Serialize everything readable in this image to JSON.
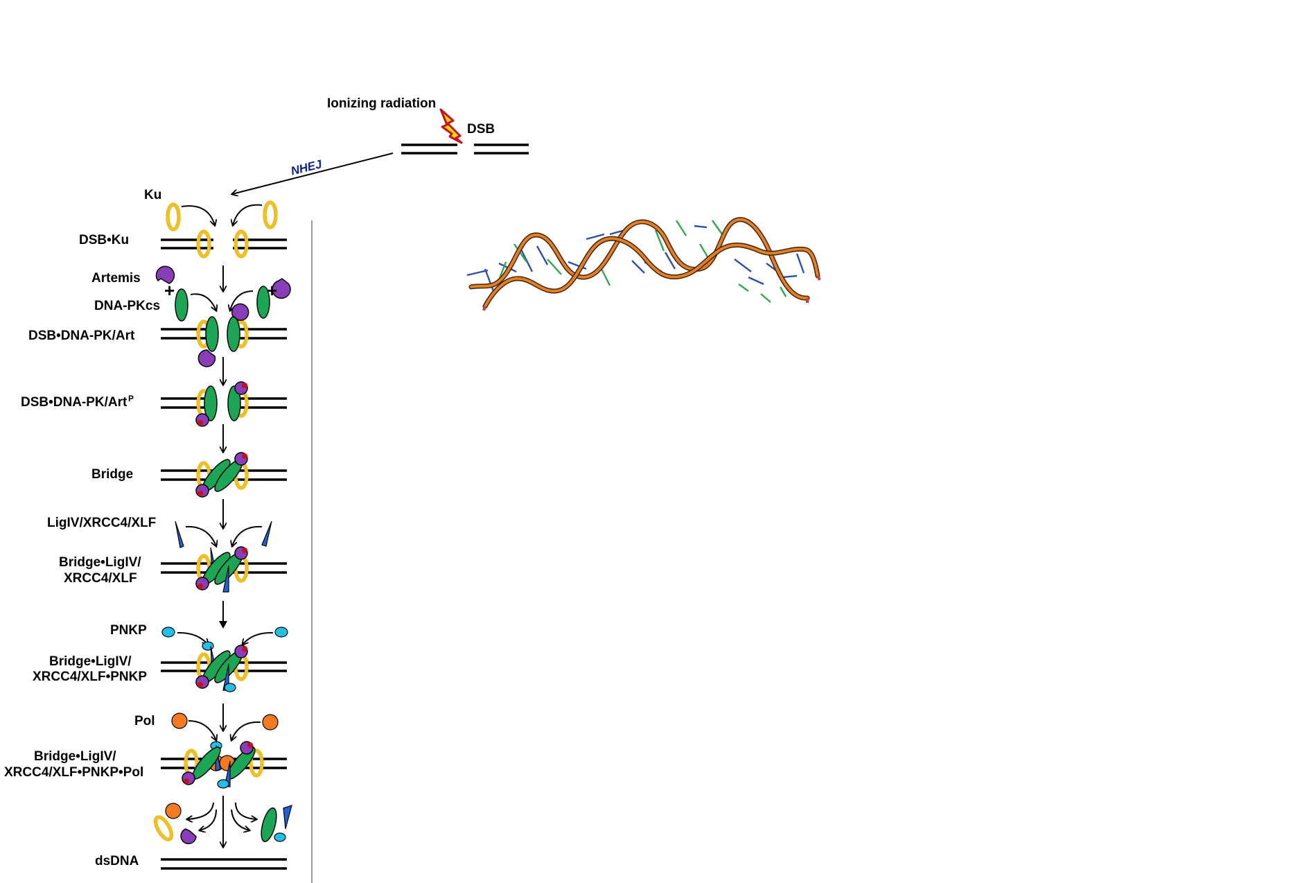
{
  "title": "",
  "colors": {
    "ku": "#f5c016",
    "dna_pkcs": "#1aa654",
    "artemis": "#8a3db8",
    "ligase_complex": "#1e63d6",
    "pnkp": "#20c0e8",
    "polymerase": "#f47a20",
    "phosphate": "#c8101a",
    "nhej_label": "#0b1e9c",
    "helix_backbone": "#e87e1c"
  },
  "header": {
    "ionizing_radiation": "Ionizing radiation",
    "dsb": "DSB",
    "nhej": "NHEJ"
  },
  "labels": {
    "ku": "Ku",
    "dsb_ku": "DSB•Ku",
    "artemis": "Artemis",
    "dna_pkcs": "DNA-PKcs",
    "dsb_dnapk_art": "DSB•DNA-PK/Art",
    "dsb_dnapk_artp": "DSB•DNA-PK/Art",
    "superscript_p": "P",
    "bridge": "Bridge",
    "ligiv_xrcc4_xlf": "LigIV/XRCC4/XLF",
    "bridge_ligiv_line1": "Bridge•LigIV/",
    "bridge_ligiv_line2": "XRCC4/XLF",
    "pnkp": "PNKP",
    "bridge_pnkp_line1": "Bridge•LigIV/",
    "bridge_pnkp_line2": "XRCC4/XLF•PNKP",
    "pol": "Pol",
    "bridge_pol_line1": "Bridge•LigIV/",
    "bridge_pol_line2": "XRCC4/XLF•PNKP•Pol",
    "dsdna": "dsDNA"
  },
  "icons": [
    "lightning-bolt-icon",
    "ku-ring-icon",
    "dna-pkcs-ellipse-icon",
    "artemis-pacman-icon",
    "ligase-wedge-icon",
    "pnkp-ellipse-icon",
    "pol-circle-icon",
    "dna-helix-structure-icon"
  ]
}
